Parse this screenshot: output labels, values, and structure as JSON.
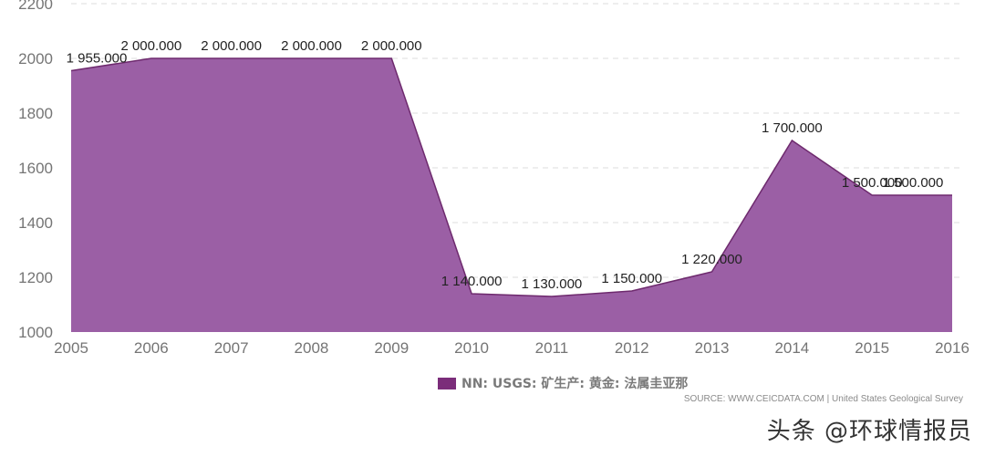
{
  "chart_data": {
    "type": "area",
    "x": [
      "2005",
      "2006",
      "2007",
      "2008",
      "2009",
      "2010",
      "2011",
      "2012",
      "2013",
      "2014",
      "2015",
      "2016"
    ],
    "series": [
      {
        "name": "NN: USGS: 矿生产: 黄金: 法属圭亚那",
        "values": [
          1955,
          2000,
          2000,
          2000,
          2000,
          1140,
          1130,
          1150,
          1220,
          1700,
          1500,
          1500
        ],
        "labels": [
          "1 955.000",
          "2 000.000",
          "2 000.000",
          "2 000.000",
          "2 000.000",
          "1 140.000",
          "1 130.000",
          "1 150.000",
          "1 220.000",
          "1 700.000",
          "1 500.000",
          "1 500.000"
        ]
      }
    ],
    "y_ticks": [
      "1000",
      "1200",
      "1400",
      "1600",
      "1800",
      "2000",
      "2200"
    ],
    "ylim": [
      1000,
      2200
    ],
    "grid": "horizontal-dashed",
    "legend_position": "bottom-center",
    "colors": {
      "area": "#9b5fa5",
      "line": "#6e2a6e",
      "legend": "#7b2d7a"
    }
  },
  "source": "SOURCE: WWW.CEICDATA.COM | United States Geological Survey",
  "watermark": "头条 @环球情报员"
}
